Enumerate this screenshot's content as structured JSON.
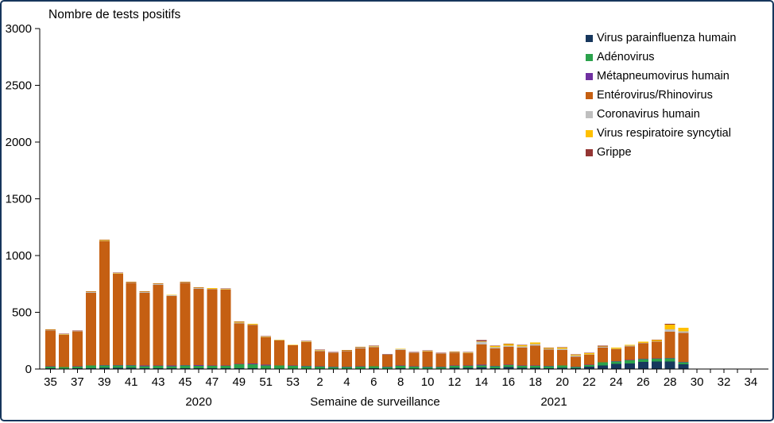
{
  "chart_data": {
    "type": "bar",
    "stacked": true,
    "title": "Nombre de tests positifs",
    "xlabel": "Semaine de surveillance",
    "year_left": "2020",
    "year_right": "2021",
    "ylim": [
      0,
      3000
    ],
    "yticks": [
      0,
      500,
      1000,
      1500,
      2000,
      2500,
      3000
    ],
    "grid": false,
    "legend_position": "top-right",
    "xtick_label_every": 2,
    "categories": [
      "35",
      "36",
      "37",
      "38",
      "39",
      "40",
      "41",
      "42",
      "43",
      "44",
      "45",
      "46",
      "47",
      "48",
      "49",
      "50",
      "51",
      "52",
      "53",
      "1",
      "2",
      "3",
      "4",
      "5",
      "6",
      "7",
      "8",
      "9",
      "10",
      "11",
      "12",
      "13",
      "14",
      "15",
      "16",
      "17",
      "18",
      "19",
      "20",
      "21",
      "22",
      "23",
      "24",
      "25",
      "26",
      "27",
      "28",
      "29",
      "30",
      "31",
      "32",
      "33",
      "34"
    ],
    "series": [
      {
        "name": "Virus parainfluenza humain",
        "color": "#17375D",
        "values": [
          8,
          5,
          6,
          8,
          10,
          10,
          10,
          8,
          8,
          8,
          8,
          8,
          8,
          8,
          8,
          6,
          5,
          5,
          5,
          5,
          5,
          5,
          5,
          5,
          6,
          4,
          6,
          5,
          5,
          5,
          12,
          12,
          14,
          8,
          19,
          12,
          10,
          8,
          10,
          6,
          21,
          33,
          44,
          49,
          63,
          68,
          68,
          42,
          0,
          0,
          0,
          0,
          0
        ]
      },
      {
        "name": "Adénovirus",
        "color": "#2BA24C",
        "values": [
          15,
          12,
          15,
          22,
          22,
          20,
          20,
          18,
          20,
          18,
          22,
          20,
          20,
          20,
          33,
          37,
          28,
          25,
          23,
          20,
          16,
          15,
          13,
          18,
          18,
          14,
          22,
          18,
          14,
          14,
          18,
          18,
          19,
          18,
          16,
          16,
          18,
          16,
          20,
          14,
          16,
          26,
          24,
          30,
          26,
          24,
          28,
          19,
          0,
          0,
          0,
          0,
          0
        ]
      },
      {
        "name": "Métapneumovirus humain",
        "color": "#7030A0",
        "values": [
          2,
          2,
          2,
          3,
          4,
          4,
          6,
          5,
          5,
          6,
          5,
          6,
          5,
          5,
          5,
          5,
          4,
          3,
          3,
          4,
          3,
          2,
          2,
          2,
          2,
          2,
          2,
          2,
          2,
          2,
          2,
          2,
          4,
          3,
          3,
          3,
          3,
          3,
          3,
          2,
          2,
          2,
          2,
          2,
          2,
          2,
          3,
          2,
          0,
          0,
          0,
          0,
          0
        ]
      },
      {
        "name": "Entérovirus/Rhinovirus",
        "color": "#C55F12",
        "values": [
          315,
          282,
          308,
          640,
          1090,
          805,
          722,
          642,
          710,
          612,
          723,
          674,
          670,
          665,
          357,
          340,
          243,
          220,
          178,
          210,
          133,
          121,
          138,
          158,
          168,
          105,
          137,
          117,
          133,
          114,
          112,
          109,
          180,
          152,
          158,
          158,
          177,
          145,
          136,
          88,
          86,
          128,
          105,
          119,
          135,
          146,
          230,
          254,
          0,
          0,
          0,
          0,
          0
        ]
      },
      {
        "name": "Coronavirus humain",
        "color": "#BFBFBF",
        "values": [
          3,
          3,
          3,
          4,
          5,
          4,
          5,
          5,
          5,
          5,
          5,
          5,
          5,
          5,
          5,
          4,
          4,
          3,
          3,
          4,
          8,
          4,
          4,
          7,
          4,
          3,
          7,
          4,
          4,
          4,
          4,
          4,
          23,
          12,
          10,
          10,
          12,
          8,
          10,
          8,
          6,
          6,
          5,
          5,
          6,
          6,
          19,
          15,
          0,
          0,
          0,
          0,
          0
        ]
      },
      {
        "name": "Virus respiratoire syncytial",
        "color": "#FFC000",
        "values": [
          5,
          5,
          5,
          6,
          7,
          5,
          5,
          5,
          5,
          4,
          5,
          5,
          5,
          5,
          7,
          7,
          3,
          3,
          2,
          4,
          4,
          2,
          5,
          3,
          5,
          4,
          3,
          4,
          5,
          4,
          4,
          4,
          5,
          10,
          16,
          12,
          14,
          6,
          10,
          8,
          11,
          6,
          9,
          9,
          10,
          12,
          45,
          31,
          0,
          0,
          0,
          0,
          0
        ]
      },
      {
        "name": "Grippe",
        "color": "#943634",
        "values": [
          2,
          1,
          1,
          2,
          2,
          2,
          2,
          2,
          2,
          2,
          2,
          2,
          2,
          2,
          5,
          1,
          2,
          1,
          1,
          1,
          1,
          1,
          1,
          3,
          2,
          1,
          3,
          1,
          1,
          1,
          1,
          1,
          9,
          2,
          3,
          1,
          2,
          4,
          2,
          4,
          1,
          4,
          1,
          1,
          1,
          1,
          7,
          2,
          0,
          0,
          0,
          0,
          0
        ]
      }
    ]
  }
}
